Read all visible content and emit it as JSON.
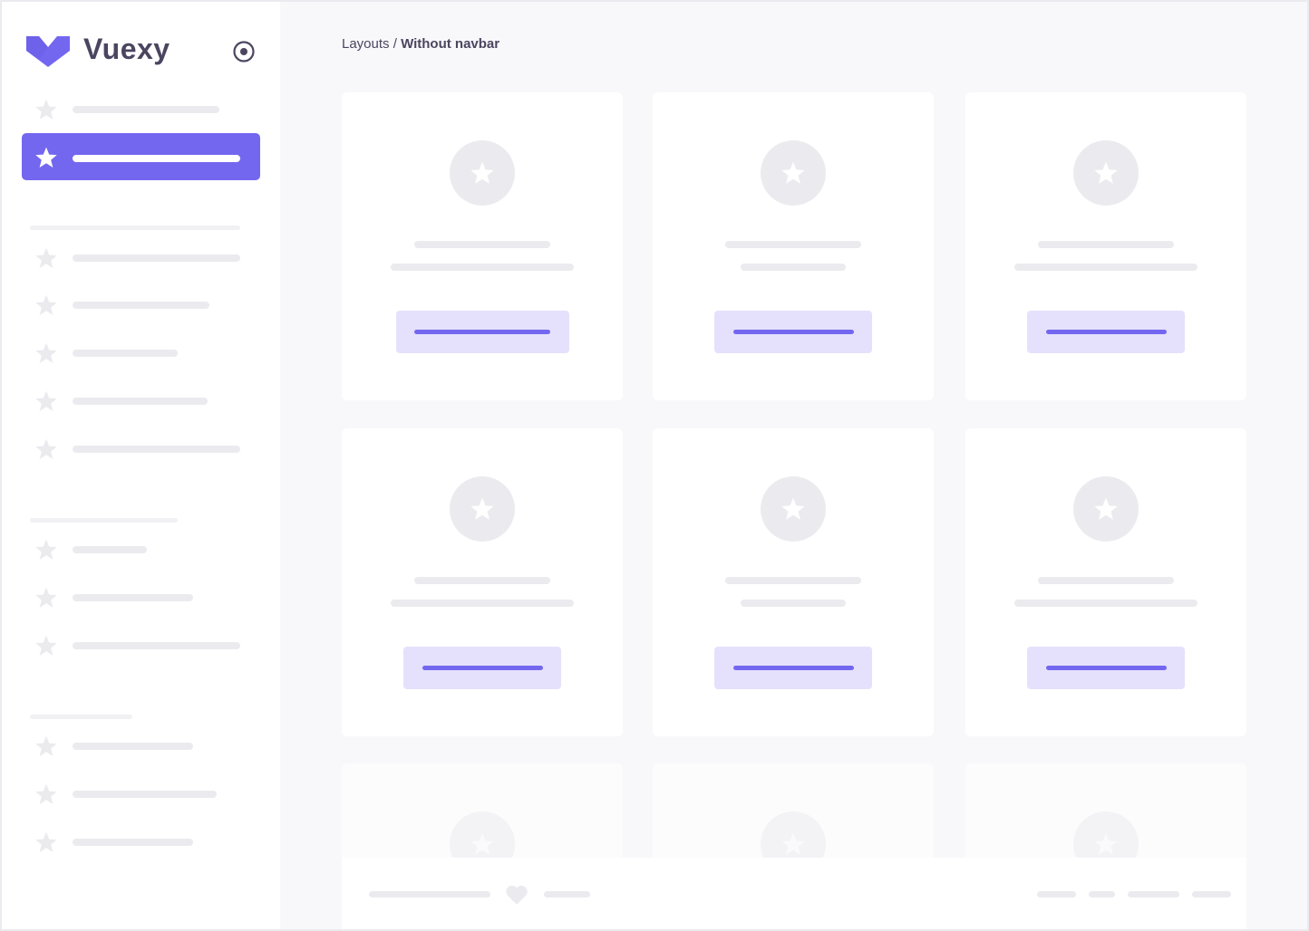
{
  "brand": {
    "name": "Vuexy",
    "logo_color": "#7367f0"
  },
  "breadcrumb": {
    "parent": "Layouts",
    "separator": " / ",
    "current": "Without navbar"
  },
  "colors": {
    "accent": "#7367f0",
    "accent_light": "#e5e1fc",
    "placeholder": "#ebebef",
    "background": "#f8f8fa",
    "text": "#4b4560"
  },
  "sidebar": {
    "toggle_icon": "radio-circle-icon",
    "active_index": 1,
    "item_icon": "star-icon"
  },
  "cards": {
    "rows": 3,
    "columns": 3,
    "icon": "star-icon"
  },
  "footer": {
    "icon": "heart-icon"
  }
}
